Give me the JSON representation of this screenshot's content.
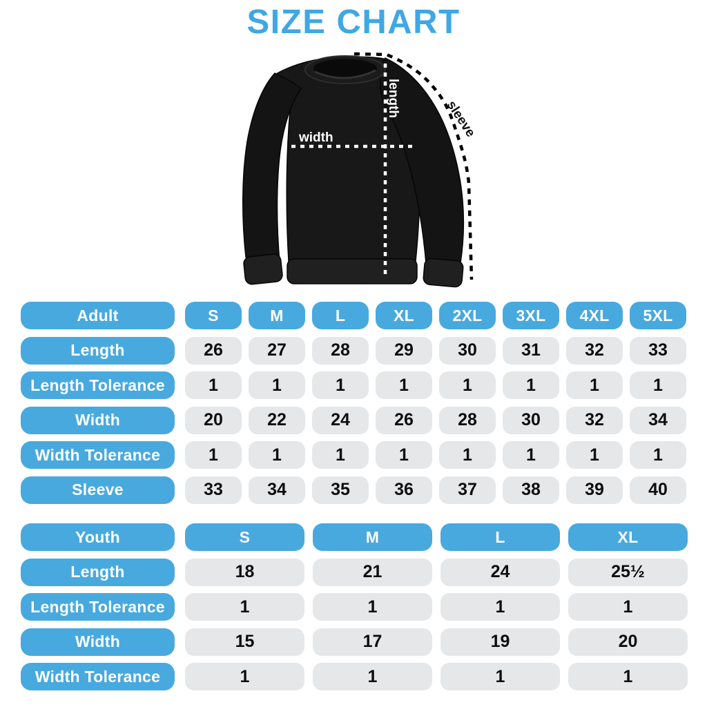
{
  "title": "SIZE CHART",
  "diagram": {
    "labels": {
      "width": "width",
      "length": "length",
      "sleeve": "sleeve"
    }
  },
  "colors": {
    "title_blue": "#3fa8e4",
    "accent_blue": "#48a9df",
    "cell_gray": "#e5e7e9",
    "number_black": "#0d0d0d",
    "shirt_black": "#161616"
  },
  "chart_data": [
    {
      "type": "table",
      "title": "Adult",
      "columns": [
        "S",
        "M",
        "L",
        "XL",
        "2XL",
        "3XL",
        "4XL",
        "5XL"
      ],
      "rows": [
        {
          "label": "Length",
          "values": [
            "26",
            "27",
            "28",
            "29",
            "30",
            "31",
            "32",
            "33"
          ]
        },
        {
          "label": "Length Tolerance",
          "values": [
            "1",
            "1",
            "1",
            "1",
            "1",
            "1",
            "1",
            "1"
          ]
        },
        {
          "label": "Width",
          "values": [
            "20",
            "22",
            "24",
            "26",
            "28",
            "30",
            "32",
            "34"
          ]
        },
        {
          "label": "Width Tolerance",
          "values": [
            "1",
            "1",
            "1",
            "1",
            "1",
            "1",
            "1",
            "1"
          ]
        },
        {
          "label": "Sleeve",
          "values": [
            "33",
            "34",
            "35",
            "36",
            "37",
            "38",
            "39",
            "40"
          ]
        }
      ]
    },
    {
      "type": "table",
      "title": "Youth",
      "columns": [
        "S",
        "M",
        "L",
        "XL"
      ],
      "rows": [
        {
          "label": "Length",
          "values": [
            "18",
            "21",
            "24",
            "25½"
          ]
        },
        {
          "label": "Length Tolerance",
          "values": [
            "1",
            "1",
            "1",
            "1"
          ]
        },
        {
          "label": "Width",
          "values": [
            "15",
            "17",
            "19",
            "20"
          ]
        },
        {
          "label": "Width Tolerance",
          "values": [
            "1",
            "1",
            "1",
            "1"
          ]
        }
      ]
    }
  ]
}
